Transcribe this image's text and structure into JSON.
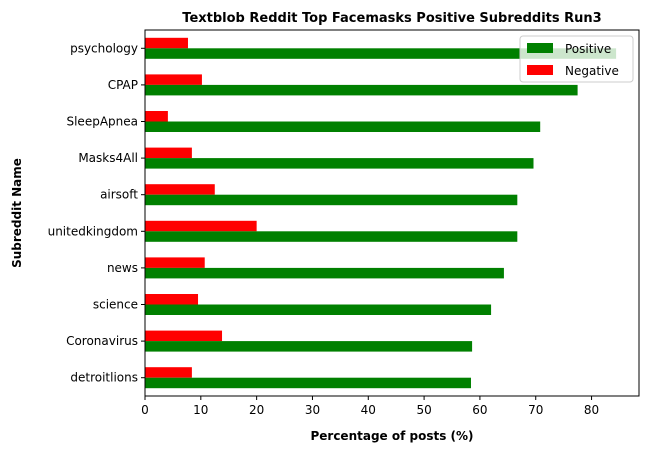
{
  "chart_data": {
    "type": "bar",
    "orientation": "horizontal",
    "title": "Textblob Reddit Top Facemasks Positive Subreddits Run3",
    "xlabel": "Percentage of posts (%)",
    "ylabel": "Subreddit Name",
    "xlim": [
      0,
      88.5
    ],
    "xticks": [
      0,
      10,
      20,
      30,
      40,
      50,
      60,
      70,
      80
    ],
    "categories": [
      "detroitlions",
      "Coronavirus",
      "science",
      "news",
      "unitedkingdom",
      "airsoft",
      "Masks4All",
      "SleepApnea",
      "CPAP",
      "psychology"
    ],
    "series": [
      {
        "name": "Positive",
        "color": "#008000",
        "values": [
          58.4,
          58.6,
          62.0,
          64.3,
          66.7,
          66.7,
          69.6,
          70.8,
          77.5,
          84.4
        ]
      },
      {
        "name": "Negative",
        "color": "#ff0000",
        "values": [
          8.4,
          13.8,
          9.5,
          10.7,
          20.0,
          12.5,
          8.4,
          4.1,
          10.2,
          7.7
        ]
      }
    ],
    "legend_position": "top-right",
    "grid": false
  }
}
